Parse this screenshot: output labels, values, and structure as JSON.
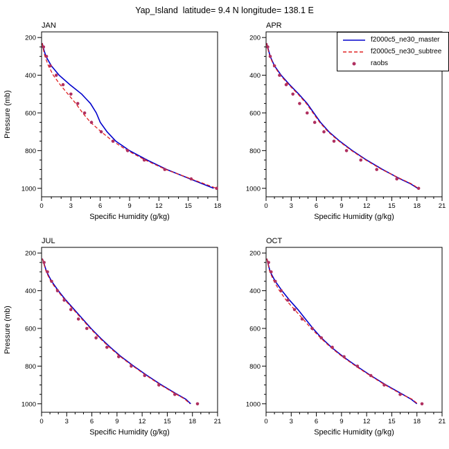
{
  "title": "Yap_Island  latitude= 9.4 N longitude= 138.1 E",
  "colors": {
    "master": "#0000cc",
    "subtree": "#e02020",
    "raobs": "#b03060"
  },
  "legend": {
    "items": [
      {
        "label": "f2000c5_ne30_master",
        "style": "solid",
        "color": "#0000cc"
      },
      {
        "label": "f2000c5_ne30_subtree",
        "style": "dash",
        "color": "#e02020"
      },
      {
        "label": "raobs",
        "style": "dots",
        "color": "#b03060"
      }
    ]
  },
  "chart_data": [
    {
      "type": "line",
      "title": "JAN",
      "xlabel": "Specific Humidity (g/kg)",
      "ylabel": "Pressure (mb)",
      "xlim": [
        0,
        18
      ],
      "xticks": [
        0,
        3,
        6,
        9,
        12,
        15,
        18
      ],
      "xtick_minor": 1,
      "ylim": [
        200,
        1000
      ],
      "yticks": [
        200,
        400,
        600,
        800,
        1000
      ],
      "ytick_minor": 50,
      "yaxis_reversed": true,
      "series": [
        {
          "name": "f2000c5_ne30_master",
          "style": "solid",
          "color": "#0000cc",
          "pressure": [
            230,
            250,
            300,
            350,
            400,
            450,
            500,
            550,
            600,
            650,
            700,
            750,
            800,
            850,
            900,
            950,
            975,
            1000
          ],
          "values": [
            0.08,
            0.15,
            0.45,
            1.0,
            1.8,
            2.9,
            4.1,
            5.0,
            5.6,
            6.0,
            6.7,
            7.6,
            9.0,
            10.8,
            12.8,
            15.2,
            16.4,
            17.6
          ]
        },
        {
          "name": "f2000c5_ne30_subtree",
          "style": "dash",
          "color": "#e02020",
          "pressure": [
            230,
            250,
            300,
            350,
            400,
            450,
            500,
            550,
            600,
            650,
            700,
            750,
            800,
            850,
            900,
            950,
            975,
            1000
          ],
          "values": [
            0.08,
            0.12,
            0.35,
            0.7,
            1.2,
            1.9,
            2.7,
            3.5,
            4.2,
            5.0,
            6.1,
            7.3,
            8.8,
            10.6,
            12.7,
            15.3,
            16.6,
            17.9
          ]
        },
        {
          "name": "raobs",
          "style": "dots",
          "color": "#b03060",
          "pressure": [
            250,
            300,
            350,
            400,
            450,
            500,
            550,
            600,
            650,
            700,
            750,
            800,
            850,
            900,
            950,
            1000
          ],
          "values": [
            0.2,
            0.5,
            0.9,
            1.5,
            2.2,
            3.0,
            3.7,
            4.4,
            5.1,
            6.1,
            7.3,
            8.8,
            10.5,
            12.6,
            15.3,
            17.9
          ]
        }
      ]
    },
    {
      "type": "line",
      "title": "APR",
      "xlabel": "Specific Humidity (g/kg)",
      "ylabel": "",
      "xlim": [
        0,
        21
      ],
      "xticks": [
        0,
        3,
        6,
        9,
        12,
        15,
        18,
        21
      ],
      "xtick_minor": 1,
      "ylim": [
        200,
        1000
      ],
      "yticks": [
        200,
        400,
        600,
        800,
        1000
      ],
      "ytick_minor": 50,
      "yaxis_reversed": true,
      "series": [
        {
          "name": "f2000c5_ne30_master",
          "style": "solid",
          "color": "#0000cc",
          "pressure": [
            230,
            250,
            300,
            350,
            400,
            450,
            500,
            550,
            600,
            650,
            700,
            750,
            800,
            850,
            900,
            950,
            975,
            1000
          ],
          "values": [
            0.08,
            0.18,
            0.5,
            1.0,
            1.8,
            2.8,
            3.9,
            4.9,
            5.7,
            6.5,
            7.5,
            8.8,
            10.3,
            12.0,
            13.9,
            16.0,
            17.2,
            18.1
          ]
        },
        {
          "name": "f2000c5_ne30_subtree",
          "style": "dash",
          "color": "#e02020",
          "pressure": [
            230,
            250,
            300,
            350,
            400,
            450,
            500,
            550,
            600,
            650,
            700,
            750,
            800,
            850,
            900,
            950,
            975,
            1000
          ],
          "values": [
            0.08,
            0.15,
            0.45,
            0.95,
            1.7,
            2.7,
            3.8,
            4.8,
            5.6,
            6.4,
            7.4,
            8.7,
            10.2,
            11.9,
            13.8,
            16.1,
            17.3,
            18.2
          ]
        },
        {
          "name": "raobs",
          "style": "dots",
          "color": "#b03060",
          "pressure": [
            250,
            300,
            350,
            400,
            450,
            500,
            550,
            600,
            650,
            700,
            750,
            800,
            850,
            900,
            950,
            1000
          ],
          "values": [
            0.2,
            0.5,
            1.0,
            1.6,
            2.4,
            3.2,
            4.0,
            4.9,
            5.8,
            6.9,
            8.1,
            9.6,
            11.3,
            13.2,
            15.6,
            18.2
          ]
        }
      ]
    },
    {
      "type": "line",
      "title": "JUL",
      "xlabel": "Specific Humidity (g/kg)",
      "ylabel": "Pressure (mb)",
      "xlim": [
        0,
        21
      ],
      "xticks": [
        0,
        3,
        6,
        9,
        12,
        15,
        18,
        21
      ],
      "xtick_minor": 1,
      "ylim": [
        200,
        1000
      ],
      "yticks": [
        200,
        400,
        600,
        800,
        1000
      ],
      "ytick_minor": 50,
      "yaxis_reversed": true,
      "series": [
        {
          "name": "f2000c5_ne30_master",
          "style": "solid",
          "color": "#0000cc",
          "pressure": [
            230,
            250,
            300,
            350,
            400,
            450,
            500,
            550,
            600,
            650,
            700,
            750,
            800,
            850,
            900,
            950,
            975,
            1000
          ],
          "values": [
            0.1,
            0.25,
            0.6,
            1.2,
            2.0,
            2.9,
            3.9,
            4.9,
            5.9,
            7.0,
            8.2,
            9.5,
            11.0,
            12.6,
            14.3,
            16.2,
            17.2,
            17.8
          ]
        },
        {
          "name": "f2000c5_ne30_subtree",
          "style": "dash",
          "color": "#e02020",
          "pressure": [
            230,
            250,
            300,
            350,
            400,
            450,
            500,
            550,
            600,
            650,
            700,
            750,
            800,
            850,
            900,
            950,
            975,
            1000
          ],
          "values": [
            0.1,
            0.22,
            0.55,
            1.1,
            1.9,
            2.8,
            3.8,
            4.8,
            5.8,
            6.9,
            8.1,
            9.4,
            10.9,
            12.5,
            14.2,
            16.1,
            17.1,
            17.7
          ]
        },
        {
          "name": "raobs",
          "style": "dots",
          "color": "#b03060",
          "pressure": [
            250,
            300,
            350,
            400,
            450,
            500,
            550,
            600,
            650,
            700,
            750,
            800,
            850,
            900,
            950,
            1000
          ],
          "values": [
            0.3,
            0.7,
            1.2,
            1.9,
            2.7,
            3.5,
            4.4,
            5.4,
            6.5,
            7.8,
            9.2,
            10.7,
            12.3,
            14.0,
            15.9,
            18.6
          ]
        }
      ]
    },
    {
      "type": "line",
      "title": "OCT",
      "xlabel": "Specific Humidity (g/kg)",
      "ylabel": "",
      "xlim": [
        0,
        21
      ],
      "xticks": [
        0,
        3,
        6,
        9,
        12,
        15,
        18,
        21
      ],
      "xtick_minor": 1,
      "ylim": [
        200,
        1000
      ],
      "yticks": [
        200,
        400,
        600,
        800,
        1000
      ],
      "ytick_minor": 50,
      "yaxis_reversed": true,
      "series": [
        {
          "name": "f2000c5_ne30_master",
          "style": "solid",
          "color": "#0000cc",
          "pressure": [
            230,
            250,
            300,
            350,
            400,
            450,
            500,
            550,
            600,
            650,
            700,
            750,
            800,
            850,
            900,
            950,
            975,
            1000
          ],
          "values": [
            0.1,
            0.2,
            0.5,
            1.1,
            1.9,
            2.8,
            3.8,
            4.7,
            5.6,
            6.6,
            7.8,
            9.2,
            10.8,
            12.5,
            14.3,
            16.3,
            17.3,
            18.0
          ]
        },
        {
          "name": "f2000c5_ne30_subtree",
          "style": "dash",
          "color": "#e02020",
          "pressure": [
            230,
            250,
            300,
            350,
            400,
            450,
            500,
            550,
            600,
            650,
            700,
            750,
            800,
            850,
            900,
            950,
            975,
            1000
          ],
          "values": [
            0.1,
            0.18,
            0.45,
            0.95,
            1.6,
            2.4,
            3.4,
            4.4,
            5.4,
            6.5,
            7.7,
            9.1,
            10.7,
            12.4,
            14.2,
            16.2,
            17.4,
            18.1
          ]
        },
        {
          "name": "raobs",
          "style": "dots",
          "color": "#b03060",
          "pressure": [
            250,
            300,
            350,
            400,
            450,
            500,
            550,
            600,
            650,
            700,
            750,
            800,
            850,
            900,
            950,
            1000
          ],
          "values": [
            0.3,
            0.6,
            1.1,
            1.8,
            2.6,
            3.4,
            4.3,
            5.5,
            6.6,
            7.9,
            9.3,
            10.9,
            12.5,
            14.1,
            16.0,
            18.6
          ]
        }
      ]
    }
  ]
}
